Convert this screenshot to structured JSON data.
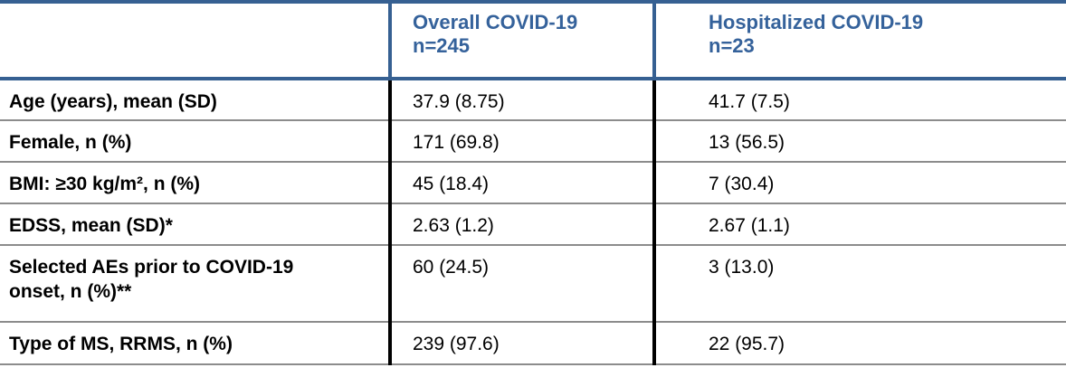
{
  "theme": {
    "accent_blue": "#366092",
    "header_text_blue": "#35629B",
    "divider_black": "#000000",
    "separator_gray": "#8C8C8C",
    "text_black": "#000000",
    "background": "#FFFFFF"
  },
  "table": {
    "header": {
      "col1": "",
      "col2": {
        "title": "Overall COVID-19",
        "n": "n=245"
      },
      "col3": {
        "title": "Hospitalized COVID-19",
        "n": "n=23"
      }
    },
    "rows": [
      {
        "label": "Age (years), mean (SD)",
        "overall": "37.9 (8.75)",
        "hospitalized": "41.7 (7.5)"
      },
      {
        "label": "Female, n (%)",
        "overall": "171 (69.8)",
        "hospitalized": "13 (56.5)"
      },
      {
        "label": "BMI: ≥30 kg/m², n (%)",
        "overall": "45 (18.4)",
        "hospitalized": "7 (30.4)"
      },
      {
        "label": "EDSS, mean (SD)*",
        "overall": "2.63 (1.2)",
        "hospitalized": "2.67 (1.1)"
      },
      {
        "label": "Selected AEs prior to COVID-19 onset, n (%)**",
        "overall": "60 (24.5)",
        "hospitalized": "3 (13.0)"
      },
      {
        "label": "Type of MS, RRMS, n (%)",
        "overall": "239 (97.6)",
        "hospitalized": "22 (95.7)"
      }
    ]
  }
}
